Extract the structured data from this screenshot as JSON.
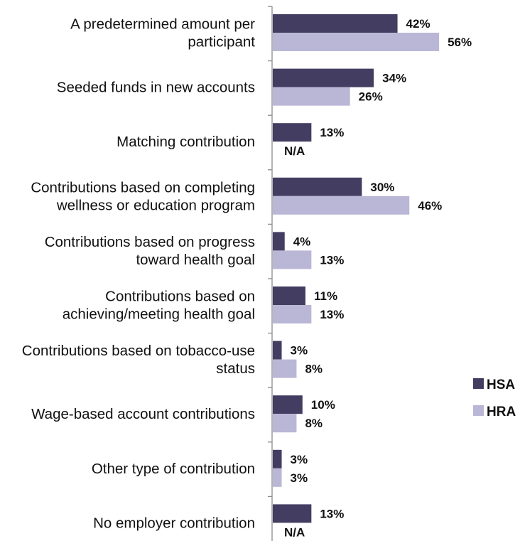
{
  "chart_data": {
    "type": "bar",
    "orientation": "horizontal",
    "categories": [
      [
        "A predetermined amount per",
        "participant"
      ],
      [
        "Seeded funds in new accounts"
      ],
      [
        "Matching contribution"
      ],
      [
        "Contributions based on completing",
        "wellness or education program"
      ],
      [
        "Contributions based on progress",
        "toward health goal"
      ],
      [
        "Contributions based on",
        "achieving/meeting health goal"
      ],
      [
        "Contributions based on tobacco-use",
        "status"
      ],
      [
        "Wage-based account contributions"
      ],
      [
        "Other type of contribution"
      ],
      [
        "No employer contribution"
      ]
    ],
    "series": [
      {
        "name": "HSA",
        "color": "#433d62",
        "values": [
          42,
          34,
          13,
          30,
          4,
          11,
          3,
          10,
          3,
          13
        ],
        "labels": [
          "42%",
          "34%",
          "13%",
          "30%",
          "4%",
          "11%",
          "3%",
          "10%",
          "3%",
          "13%"
        ]
      },
      {
        "name": "HRA",
        "color": "#bab6d6",
        "values": [
          56,
          26,
          null,
          46,
          13,
          13,
          8,
          8,
          3,
          null
        ],
        "labels": [
          "56%",
          "26%",
          "N/A",
          "46%",
          "13%",
          "13%",
          "8%",
          "8%",
          "3%",
          "N/A"
        ]
      }
    ],
    "xlim": [
      0,
      60
    ],
    "legend_position": "right",
    "grid": false
  }
}
